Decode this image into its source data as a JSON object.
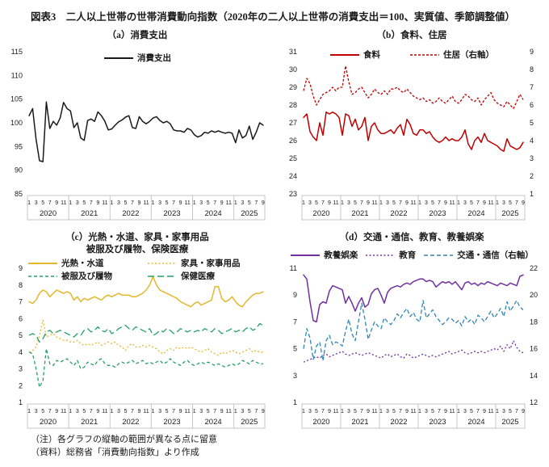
{
  "figure": {
    "title": "図表3　二人以上世帯の世帯消費動向指数（2020年の二人以上世帯の消費支出＝100、実質値、季節調整値）",
    "notes": [
      "（注）各グラフの縦軸の範囲が異なる点に留意",
      "（資料）総務省「消費動向指数」より作成"
    ]
  },
  "chart_data": [
    {
      "type": "line",
      "title_line1": "（a）消費支出",
      "title_line2": "",
      "x_years": [
        {
          "label": "2020",
          "months": 12
        },
        {
          "label": "2021",
          "months": 12
        },
        {
          "label": "2022",
          "months": 12
        },
        {
          "label": "2023",
          "months": 12
        },
        {
          "label": "2024",
          "months": 12
        },
        {
          "label": "2025",
          "months": 9
        }
      ],
      "month_ticks": [
        1,
        3,
        5,
        7,
        9,
        11
      ],
      "axes": {
        "left": {
          "min": 85,
          "max": 115,
          "step": 5
        },
        "right": null
      },
      "series": [
        {
          "name": "消費支出",
          "color": "#1a1a1a",
          "dash": null,
          "axis": "left",
          "values": [
            101.5,
            103.0,
            96.5,
            92.0,
            91.8,
            104.4,
            98.8,
            100.3,
            99.5,
            101.0,
            104.3,
            103.0,
            102.5,
            99.0,
            100.0,
            96.8,
            96.3,
            100.5,
            100.8,
            100.3,
            102.3,
            101.5,
            100.3,
            98.5,
            98.7,
            99.5,
            100.2,
            100.6,
            101.2,
            101.5,
            99.0,
            98.8,
            101.3,
            100.3,
            99.8,
            100.3,
            101.0,
            101.3,
            100.5,
            100.0,
            100.3,
            99.8,
            98.5,
            98.3,
            98.3,
            98.0,
            98.8,
            98.5,
            97.5,
            97.0,
            97.3,
            98.0,
            97.8,
            98.3,
            98.0,
            98.3,
            98.0,
            97.8,
            98.0,
            97.8,
            95.8,
            98.5,
            96.8,
            97.3,
            99.3,
            96.5,
            98.0,
            100.0,
            99.5
          ]
        }
      ]
    },
    {
      "type": "line",
      "title_line1": "（b）食料、住居",
      "title_line2": "",
      "x_years": [
        {
          "label": "2020",
          "months": 12
        },
        {
          "label": "2021",
          "months": 12
        },
        {
          "label": "2022",
          "months": 12
        },
        {
          "label": "2023",
          "months": 12
        },
        {
          "label": "2024",
          "months": 12
        },
        {
          "label": "2025",
          "months": 9
        }
      ],
      "month_ticks": [
        1,
        3,
        5,
        7,
        9,
        11
      ],
      "axes": {
        "left": {
          "min": 23,
          "max": 31,
          "step": 1
        },
        "right": {
          "min": 1,
          "max": 9,
          "step": 1
        }
      },
      "series": [
        {
          "name": "食料",
          "color": "#C00000",
          "dash": null,
          "axis": "left",
          "values": [
            27.3,
            27.5,
            26.5,
            26.2,
            26.0,
            27.0,
            26.3,
            27.6,
            27.5,
            27.6,
            27.5,
            27.3,
            26.3,
            27.5,
            27.4,
            26.8,
            27.2,
            26.6,
            26.8,
            27.3,
            26.0,
            26.8,
            27.0,
            26.6,
            26.4,
            26.4,
            26.5,
            26.6,
            26.4,
            26.7,
            26.9,
            26.3,
            27.2,
            26.9,
            26.4,
            26.3,
            26.6,
            26.6,
            26.4,
            26.5,
            26.2,
            26.0,
            25.9,
            26.0,
            26.2,
            26.0,
            26.1,
            26.0,
            26.0,
            26.2,
            26.6,
            25.8,
            25.5,
            26.0,
            26.2,
            25.9,
            26.4,
            26.0,
            25.9,
            25.8,
            25.7,
            25.5,
            25.4,
            26.1,
            25.7,
            25.6,
            25.5,
            25.6,
            25.9
          ]
        },
        {
          "name": "住居（右軸）",
          "color": "#C00000",
          "dash": "3,2",
          "axis": "right",
          "values": [
            6.8,
            7.5,
            7.2,
            6.5,
            6.0,
            6.3,
            6.6,
            6.7,
            6.8,
            7.0,
            6.8,
            7.0,
            7.0,
            8.2,
            7.3,
            6.6,
            6.7,
            6.9,
            7.0,
            6.7,
            6.4,
            6.6,
            6.9,
            6.7,
            6.6,
            6.8,
            6.6,
            6.9,
            6.9,
            7.0,
            6.8,
            6.7,
            6.9,
            6.7,
            6.5,
            6.4,
            6.3,
            6.4,
            6.2,
            6.3,
            6.1,
            6.2,
            6.4,
            6.2,
            6.1,
            6.3,
            6.5,
            6.2,
            6.1,
            6.3,
            6.6,
            6.5,
            6.3,
            6.2,
            6.4,
            6.0,
            6.3,
            6.5,
            6.7,
            6.3,
            6.1,
            6.0,
            5.9,
            6.2,
            6.0,
            5.8,
            6.2,
            6.6,
            6.3
          ]
        }
      ]
    },
    {
      "type": "line",
      "title_line1": "（c）光熱・水道、家具・家事用品",
      "title_line2": "被服及び履物、保険医療",
      "x_years": [
        {
          "label": "2020",
          "months": 12
        },
        {
          "label": "2021",
          "months": 12
        },
        {
          "label": "2022",
          "months": 12
        },
        {
          "label": "2023",
          "months": 12
        },
        {
          "label": "2024",
          "months": 12
        },
        {
          "label": "2025",
          "months": 9
        }
      ],
      "month_ticks": [
        1,
        3,
        5,
        7,
        9,
        11
      ],
      "axes": {
        "left": {
          "min": 1,
          "max": 9,
          "step": 1
        },
        "right": null
      },
      "series": [
        {
          "name": "光熱・水道",
          "color": "#E3B82E",
          "dash": null,
          "axis": "left",
          "values": [
            7.0,
            6.9,
            7.1,
            7.5,
            7.7,
            7.6,
            7.3,
            7.5,
            7.7,
            7.6,
            7.5,
            7.6,
            7.5,
            7.1,
            7.3,
            7.0,
            7.2,
            7.1,
            7.2,
            7.3,
            7.2,
            7.1,
            7.3,
            7.4,
            7.3,
            7.4,
            7.5,
            7.4,
            7.4,
            7.4,
            7.3,
            7.3,
            7.4,
            7.5,
            7.7,
            8.0,
            8.5,
            8.0,
            7.7,
            7.6,
            7.5,
            7.4,
            7.3,
            7.2,
            7.0,
            6.9,
            6.8,
            6.7,
            6.9,
            7.0,
            6.8,
            6.9,
            7.0,
            7.1,
            7.9,
            7.9,
            7.2,
            7.0,
            7.1,
            7.3,
            7.0,
            6.8,
            6.7,
            7.0,
            7.2,
            7.4,
            7.5,
            7.5,
            7.6
          ]
        },
        {
          "name": "家具・家事用品",
          "color": "#E3B82E",
          "dash": "2,2.5",
          "axis": "left",
          "values": [
            4.0,
            4.1,
            4.3,
            5.0,
            5.9,
            4.9,
            5.0,
            5.1,
            4.9,
            4.8,
            4.7,
            4.7,
            4.6,
            4.6,
            4.7,
            4.5,
            4.4,
            4.5,
            4.4,
            4.5,
            4.6,
            4.4,
            4.5,
            4.6,
            4.5,
            4.6,
            4.4,
            4.3,
            4.1,
            4.4,
            4.5,
            4.3,
            4.3,
            4.4,
            4.3,
            4.4,
            4.3,
            4.2,
            4.0,
            3.9,
            4.1,
            4.2,
            4.1,
            4.3,
            4.2,
            4.3,
            4.2,
            4.3,
            4.2,
            4.1,
            4.0,
            4.1,
            4.2,
            4.0,
            3.9,
            3.8,
            4.0,
            3.9,
            4.0,
            4.1,
            4.0,
            3.9,
            4.0,
            4.1,
            4.2,
            4.0,
            4.1,
            4.0,
            4.0
          ]
        },
        {
          "name": "被服及び履物",
          "color": "#23A164",
          "dash": "4,3",
          "axis": "left",
          "values": [
            4.0,
            3.9,
            3.0,
            1.9,
            2.3,
            4.2,
            3.3,
            3.2,
            3.5,
            3.4,
            3.5,
            3.6,
            3.4,
            3.2,
            3.5,
            3.0,
            3.1,
            3.4,
            3.3,
            3.2,
            3.5,
            3.6,
            3.3,
            3.2,
            3.2,
            3.1,
            3.3,
            3.4,
            3.3,
            3.4,
            3.5,
            3.3,
            3.4,
            3.5,
            3.3,
            3.4,
            3.3,
            3.4,
            3.5,
            3.3,
            3.4,
            3.6,
            3.4,
            3.3,
            3.2,
            3.4,
            3.5,
            3.3,
            3.2,
            3.3,
            3.4,
            3.3,
            3.4,
            3.3,
            3.2,
            3.3,
            3.2,
            3.1,
            3.2,
            3.3,
            3.2,
            3.3,
            3.5,
            3.4,
            3.3,
            3.5,
            3.4,
            3.3,
            3.3
          ]
        },
        {
          "name": "保健医療",
          "color": "#23A164",
          "dash": "8,4",
          "axis": "left",
          "values": [
            5.0,
            5.1,
            5.0,
            4.6,
            4.8,
            5.2,
            5.3,
            5.1,
            5.2,
            5.3,
            5.2,
            5.1,
            5.0,
            4.9,
            5.1,
            5.0,
            5.3,
            5.4,
            5.2,
            5.3,
            5.5,
            5.3,
            5.2,
            5.4,
            5.1,
            5.2,
            5.4,
            5.5,
            5.6,
            5.4,
            5.3,
            5.5,
            5.4,
            5.3,
            5.2,
            5.4,
            5.0,
            5.1,
            5.3,
            5.2,
            5.4,
            5.3,
            5.1,
            5.2,
            5.4,
            5.3,
            5.2,
            5.3,
            5.2,
            5.3,
            5.2,
            5.4,
            5.3,
            5.2,
            5.4,
            5.3,
            5.1,
            5.2,
            5.3,
            5.4,
            5.2,
            5.3,
            5.2,
            5.4,
            5.5,
            5.3,
            5.4,
            5.7,
            5.6
          ]
        }
      ]
    },
    {
      "type": "line",
      "title_line1": "（d）交通・通信、教育、教養娯楽",
      "title_line2": "",
      "x_years": [
        {
          "label": "2020",
          "months": 12
        },
        {
          "label": "2021",
          "months": 12
        },
        {
          "label": "2022",
          "months": 12
        },
        {
          "label": "2023",
          "months": 12
        },
        {
          "label": "2024",
          "months": 12
        },
        {
          "label": "2025",
          "months": 9
        }
      ],
      "month_ticks": [
        1,
        3,
        5,
        7,
        9,
        11
      ],
      "axes": {
        "left": {
          "min": 1,
          "max": 11,
          "step": 2
        },
        "right": {
          "min": 12,
          "max": 22,
          "step": 2
        }
      },
      "series": [
        {
          "name": "教養娯楽",
          "color": "#7030A0",
          "dash": null,
          "axis": "left",
          "values": [
            10.5,
            10.2,
            8.5,
            7.1,
            7.0,
            8.3,
            8.5,
            8.4,
            9.3,
            9.7,
            9.6,
            9.5,
            9.4,
            8.4,
            8.9,
            8.4,
            7.8,
            8.4,
            8.8,
            8.1,
            8.3,
            9.1,
            9.4,
            9.5,
            9.0,
            8.4,
            9.2,
            9.5,
            9.6,
            9.7,
            9.6,
            9.8,
            9.9,
            9.8,
            10.0,
            10.1,
            10.2,
            10.2,
            10.0,
            10.1,
            10.0,
            9.6,
            9.8,
            10.0,
            9.9,
            10.0,
            9.8,
            10.0,
            9.7,
            9.4,
            9.9,
            10.0,
            9.8,
            9.9,
            9.7,
            9.9,
            9.8,
            10.0,
            9.9,
            9.8,
            9.7,
            9.9,
            9.8,
            9.7,
            9.9,
            9.8,
            9.7,
            10.4,
            10.5
          ]
        },
        {
          "name": "教育",
          "color": "#7030A0",
          "dash": "2,2.5",
          "axis": "left",
          "values": [
            4.0,
            4.1,
            4.2,
            4.3,
            4.4,
            4.3,
            4.5,
            4.6,
            4.4,
            4.5,
            4.6,
            4.7,
            4.8,
            4.6,
            4.5,
            4.6,
            4.7,
            4.6,
            4.5,
            4.6,
            4.7,
            4.6,
            4.5,
            4.4,
            4.3,
            4.5,
            4.6,
            4.4,
            4.5,
            4.6,
            4.4,
            4.3,
            4.6,
            4.5,
            4.3,
            4.4,
            4.5,
            4.6,
            4.5,
            4.4,
            4.5,
            4.4,
            4.5,
            4.6,
            4.7,
            4.8,
            4.6,
            4.7,
            4.8,
            4.9,
            4.7,
            4.6,
            4.7,
            4.8,
            4.7,
            4.8,
            4.7,
            4.8,
            4.9,
            5.0,
            4.9,
            5.2,
            4.8,
            5.3,
            5.0,
            5.6,
            5.1,
            4.8,
            4.7
          ]
        },
        {
          "name": "交通・通信（右軸）",
          "color": "#2E86B5",
          "dash": "5,3",
          "axis": "right",
          "values": [
            16.0,
            17.5,
            16.8,
            15.2,
            16.2,
            16.5,
            15.1,
            16.6,
            17.0,
            16.3,
            16.5,
            16.4,
            16.2,
            17.3,
            18.2,
            17.1,
            16.6,
            18.0,
            19.4,
            18.2,
            16.7,
            17.4,
            18.0,
            17.7,
            17.5,
            18.3,
            18.0,
            17.8,
            18.1,
            18.6,
            18.3,
            18.7,
            19.0,
            18.4,
            18.7,
            18.2,
            18.0,
            19.6,
            18.3,
            18.6,
            18.9,
            18.4,
            18.1,
            17.8,
            18.0,
            18.3,
            18.2,
            17.9,
            18.1,
            17.7,
            18.4,
            18.0,
            18.2,
            17.8,
            18.5,
            18.3,
            18.0,
            18.4,
            18.8,
            18.3,
            18.6,
            19.0,
            18.4,
            19.5,
            18.8,
            19.2,
            19.6,
            19.1,
            18.9
          ]
        }
      ]
    }
  ],
  "style_tokens": {
    "axis_box_border": "#c6c6c6",
    "axis_text_color": "#1a1a1a"
  }
}
